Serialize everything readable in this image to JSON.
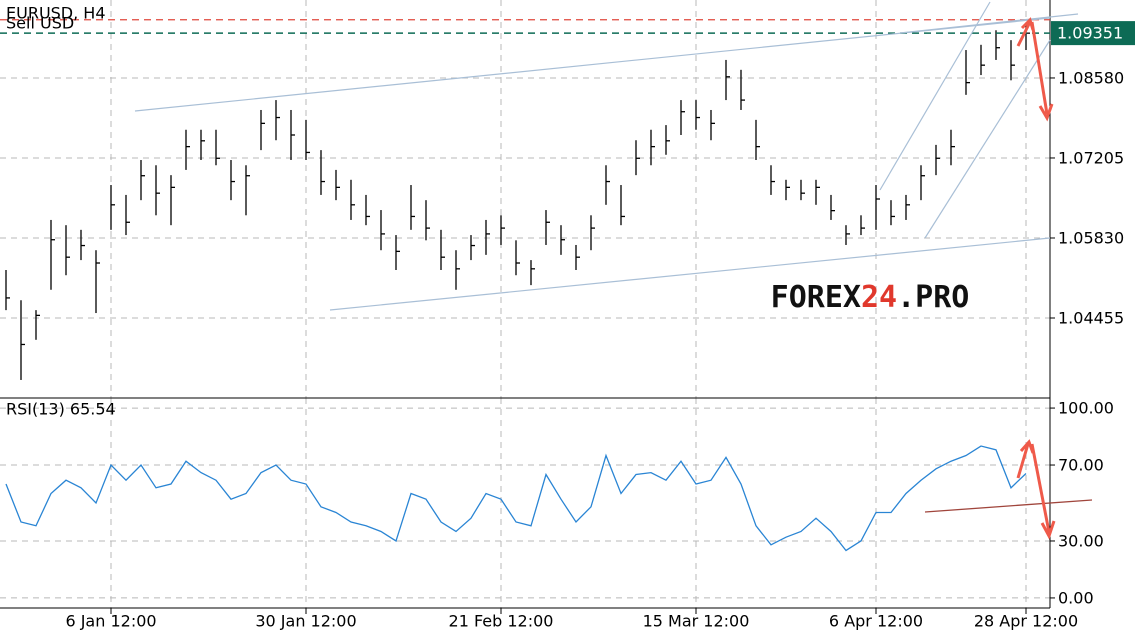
{
  "chart_data": [
    {
      "type": "ohlc",
      "title": "EURUSD, H4",
      "subtitle": "Sell USD",
      "categories": [
        null,
        null,
        null,
        null,
        null,
        null,
        null,
        "6 Jan 12:00",
        null,
        null,
        null,
        null,
        null,
        null,
        null,
        null,
        null,
        null,
        null,
        null,
        "30 Jan 12:00",
        null,
        null,
        null,
        null,
        null,
        null,
        null,
        null,
        null,
        null,
        null,
        null,
        "21 Feb 12:00",
        null,
        null,
        null,
        null,
        null,
        null,
        null,
        null,
        null,
        null,
        null,
        null,
        "15 Mar 12:00",
        null,
        null,
        null,
        null,
        null,
        null,
        null,
        null,
        null,
        null,
        null,
        "6 Apr 12:00",
        null,
        null,
        null,
        null,
        null,
        null,
        null,
        null,
        null,
        "28 Apr 12:00"
      ],
      "high": [
        1.0528,
        1.0476,
        1.0459,
        1.0614,
        1.0605,
        1.0597,
        1.0562,
        1.0674,
        1.0657,
        1.0717,
        1.0708,
        1.0691,
        1.0769,
        1.0769,
        1.0769,
        1.0717,
        1.0708,
        1.0803,
        1.082,
        1.0803,
        1.0786,
        1.0734,
        1.07,
        1.0683,
        1.0657,
        1.0631,
        1.0588,
        1.0674,
        1.0648,
        1.0597,
        1.0562,
        1.0588,
        1.0614,
        1.0622,
        1.0579,
        1.0545,
        1.0631,
        1.0605,
        1.0571,
        1.0622,
        1.0708,
        1.0674,
        1.0751,
        1.0769,
        1.0777,
        1.082,
        1.082,
        1.0803,
        1.0889,
        1.0872,
        1.0786,
        1.0708,
        1.0683,
        1.0683,
        1.0683,
        1.0657,
        1.0605,
        1.0622,
        1.0674,
        1.0648,
        1.0657,
        1.0708,
        1.0743,
        1.0769,
        1.0906,
        1.0915,
        1.094,
        1.0923,
        1.0949
      ],
      "low": [
        1.0459,
        1.0339,
        1.0408,
        1.0494,
        1.0519,
        1.0545,
        1.0454,
        1.0597,
        1.0588,
        1.0648,
        1.0622,
        1.0605,
        1.07,
        1.0717,
        1.0708,
        1.0648,
        1.0622,
        1.0734,
        1.0751,
        1.0717,
        1.0717,
        1.0657,
        1.0648,
        1.0614,
        1.0605,
        1.0562,
        1.0528,
        1.0597,
        1.0579,
        1.0528,
        1.0494,
        1.0545,
        1.0554,
        1.0571,
        1.0519,
        1.0502,
        1.0571,
        1.0554,
        1.0528,
        1.0562,
        1.064,
        1.0605,
        1.0691,
        1.0708,
        1.0726,
        1.076,
        1.0769,
        1.0751,
        1.082,
        1.0803,
        1.0717,
        1.0657,
        1.0648,
        1.0648,
        1.064,
        1.0614,
        1.0571,
        1.0588,
        1.0597,
        1.0605,
        1.0614,
        1.0648,
        1.0691,
        1.0708,
        1.0829,
        1.0863,
        1.0889,
        1.0854,
        1.0906
      ],
      "close": [
        1.048,
        1.04,
        1.045,
        1.058,
        1.055,
        1.057,
        1.054,
        1.064,
        1.061,
        1.069,
        1.066,
        1.067,
        1.074,
        1.075,
        1.072,
        1.068,
        1.069,
        1.078,
        1.079,
        1.076,
        1.073,
        1.068,
        1.067,
        1.064,
        1.062,
        1.059,
        1.056,
        1.062,
        1.06,
        1.055,
        1.053,
        1.057,
        1.059,
        1.06,
        1.054,
        1.053,
        1.061,
        1.058,
        1.055,
        1.06,
        1.068,
        1.062,
        1.072,
        1.074,
        1.075,
        1.08,
        1.079,
        1.078,
        1.086,
        1.082,
        1.074,
        1.068,
        1.067,
        1.066,
        1.067,
        1.063,
        1.059,
        1.06,
        1.065,
        1.062,
        1.064,
        1.069,
        1.072,
        1.074,
        1.085,
        1.088,
        1.091,
        1.088,
        1.0935
      ],
      "color": "#000000",
      "ylim": [
        1.0308,
        1.0992
      ],
      "yticks": [
        {
          "value": 1.0858,
          "label": "1.08580"
        },
        1.07205,
        {
          "value": 1.0583,
          "label": "1.05830"
        },
        1.04455
      ],
      "current_price": 1.09351,
      "current_color": "#0d6b55",
      "sell_level": 1.0958,
      "sell_color": "#e0483c",
      "grid": true
    },
    {
      "type": "line",
      "title": "RSI(13) 65.54",
      "values": [
        60,
        40,
        38,
        55,
        62,
        58,
        50,
        70,
        62,
        70,
        58,
        60,
        72,
        66,
        62,
        52,
        55,
        66,
        70,
        62,
        60,
        48,
        45,
        40,
        38,
        35,
        30,
        55,
        52,
        40,
        35,
        42,
        55,
        52,
        40,
        38,
        65,
        52,
        40,
        48,
        75,
        55,
        65,
        66,
        62,
        72,
        60,
        62,
        74,
        60,
        38,
        28,
        32,
        35,
        42,
        35,
        25,
        30,
        45,
        45,
        55,
        62,
        68,
        72,
        75,
        80,
        78,
        58,
        65.54
      ],
      "color": "#2a85d4",
      "ylim": [
        -5.3,
        105.3
      ],
      "yticks": [
        {
          "value": 100,
          "label": "100.00"
        },
        {
          "value": 70,
          "label": "70.00"
        },
        {
          "value": 30,
          "label": "30.00"
        },
        {
          "value": 0,
          "label": "0.00"
        }
      ],
      "grid": true
    }
  ],
  "watermark": [
    "FOREX",
    "24",
    ".PRO"
  ]
}
